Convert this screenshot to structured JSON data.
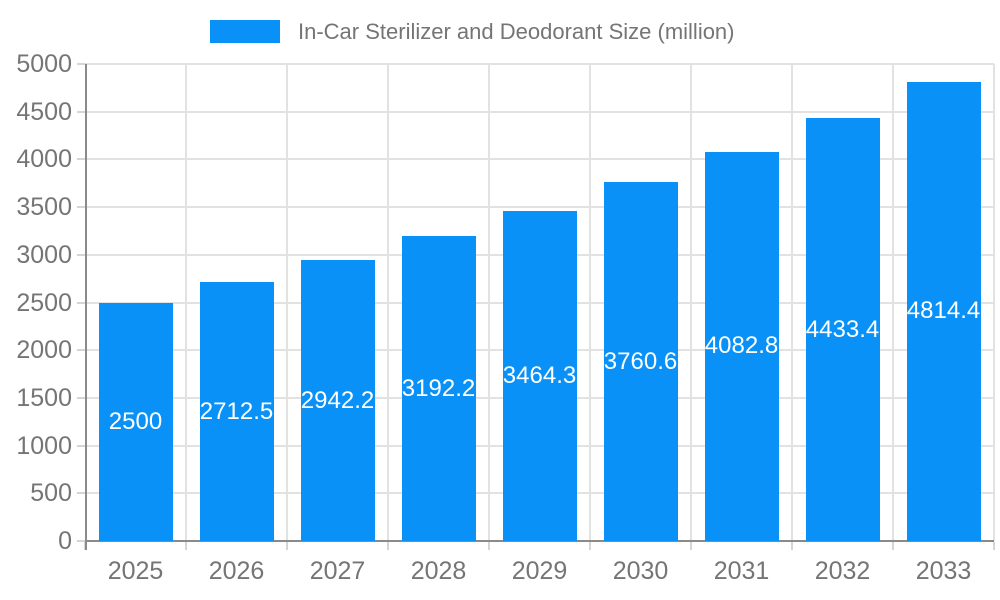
{
  "chart_data": {
    "type": "bar",
    "title": "In-Car Sterilizer and Deodorant Size (million)",
    "legend_position": "top",
    "categories": [
      "2025",
      "2026",
      "2027",
      "2028",
      "2029",
      "2030",
      "2031",
      "2032",
      "2033"
    ],
    "values": [
      2500,
      2712.5,
      2942.2,
      3192.2,
      3464.3,
      3760.6,
      4082.8,
      4433.4,
      4814.4
    ],
    "bar_labels": [
      "2500",
      "2712.5",
      "2942.2",
      "3192.2",
      "3464.3",
      "3760.6",
      "4082.8",
      "4433.4",
      "4814.4"
    ],
    "xlabel": "",
    "ylabel": "",
    "ylim": [
      0,
      5000
    ],
    "y_ticks": [
      0,
      500,
      1000,
      1500,
      2000,
      2500,
      3000,
      3500,
      4000,
      4500,
      5000
    ],
    "grid": true,
    "colors": {
      "bar": "#0991f8",
      "axis_line": "#8a8a8a",
      "grid_line": "#e2e2e2",
      "tick_mark": "#d5d5d5",
      "tick_text": "#757575",
      "bar_label_text": "#ffffff",
      "background": "#ffffff"
    }
  }
}
